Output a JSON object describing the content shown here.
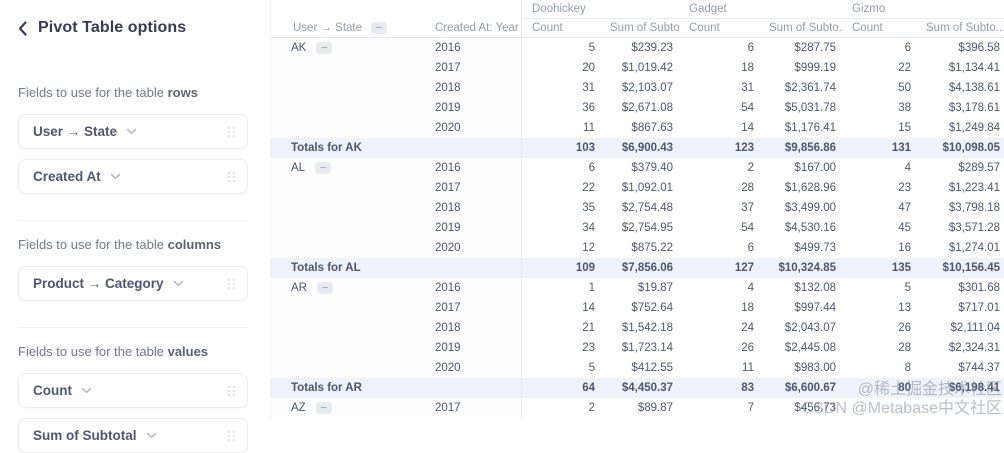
{
  "icons": {
    "back": "‹",
    "chevron_down": "⌄",
    "collapse": "–",
    "drag_handle": "∷"
  },
  "colors": {
    "text": "#4c5773",
    "muted_header": "#959bad",
    "totals_row_bg": "#eef2f9",
    "card_border": "#ededf1",
    "badge_bg": "#e7eaf0"
  },
  "sidebar": {
    "title": "Pivot Table options",
    "sections": [
      {
        "label_prefix": "Fields to use for the table ",
        "label_emphasis": "rows",
        "fields": [
          "User → State",
          "Created At"
        ]
      },
      {
        "label_prefix": "Fields to use for the table ",
        "label_emphasis": "columns",
        "fields": [
          "Product → Category"
        ]
      },
      {
        "label_prefix": "Fields to use for the table ",
        "label_emphasis": "values",
        "fields": [
          "Count",
          "Sum of Subtotal"
        ]
      }
    ]
  },
  "table": {
    "row_header_state": "User → State",
    "row_header_year": "Created At: Year",
    "groups": [
      "Doohickey",
      "Gadget",
      "Gizmo"
    ],
    "value_headers": [
      "Count",
      "Sum of Subto..."
    ],
    "sections": [
      {
        "state": "AK",
        "rows": [
          [
            "2016",
            "5",
            "$239.23",
            "6",
            "$287.75",
            "6",
            "$396.58"
          ],
          [
            "2017",
            "20",
            "$1,019.42",
            "18",
            "$999.19",
            "22",
            "$1,134.41"
          ],
          [
            "2018",
            "31",
            "$2,103.07",
            "31",
            "$2,361.74",
            "50",
            "$4,138.61"
          ],
          [
            "2019",
            "36",
            "$2,671.08",
            "54",
            "$5,031.78",
            "38",
            "$3,178.61"
          ],
          [
            "2020",
            "11",
            "$867.63",
            "14",
            "$1,176.41",
            "15",
            "$1,249.84"
          ]
        ],
        "totals_label": "Totals for AK",
        "totals": [
          "103",
          "$6,900.43",
          "123",
          "$9,856.86",
          "131",
          "$10,098.05"
        ]
      },
      {
        "state": "AL",
        "rows": [
          [
            "2016",
            "6",
            "$379.40",
            "2",
            "$167.00",
            "4",
            "$289.57"
          ],
          [
            "2017",
            "22",
            "$1,092.01",
            "28",
            "$1,628.96",
            "23",
            "$1,223.41"
          ],
          [
            "2018",
            "35",
            "$2,754.48",
            "37",
            "$3,499.00",
            "47",
            "$3,798.18"
          ],
          [
            "2019",
            "34",
            "$2,754.95",
            "54",
            "$4,530.16",
            "45",
            "$3,571.28"
          ],
          [
            "2020",
            "12",
            "$875.22",
            "6",
            "$499.73",
            "16",
            "$1,274.01"
          ]
        ],
        "totals_label": "Totals for AL",
        "totals": [
          "109",
          "$7,856.06",
          "127",
          "$10,324.85",
          "135",
          "$10,156.45"
        ]
      },
      {
        "state": "AR",
        "rows": [
          [
            "2016",
            "1",
            "$19.87",
            "4",
            "$132.08",
            "5",
            "$301.68"
          ],
          [
            "2017",
            "14",
            "$752.64",
            "18",
            "$997.44",
            "13",
            "$717.01"
          ],
          [
            "2018",
            "21",
            "$1,542.18",
            "24",
            "$2,043.07",
            "26",
            "$2,111.04"
          ],
          [
            "2019",
            "23",
            "$1,723.14",
            "26",
            "$2,445.08",
            "28",
            "$2,324.31"
          ],
          [
            "2020",
            "5",
            "$412.55",
            "11",
            "$983.00",
            "8",
            "$744.37"
          ]
        ],
        "totals_label": "Totals for AR",
        "totals": [
          "64",
          "$4,450.37",
          "83",
          "$6,600.67",
          "80",
          "$6,198.41"
        ]
      },
      {
        "state": "AZ",
        "rows": [
          [
            "2017",
            "2",
            "$89.87",
            "7",
            "$456.73",
            "",
            ""
          ]
        ]
      }
    ]
  },
  "watermark": {
    "line1": "@稀土掘金技术社区",
    "line2": "CSDN @Metabase中文社区"
  }
}
